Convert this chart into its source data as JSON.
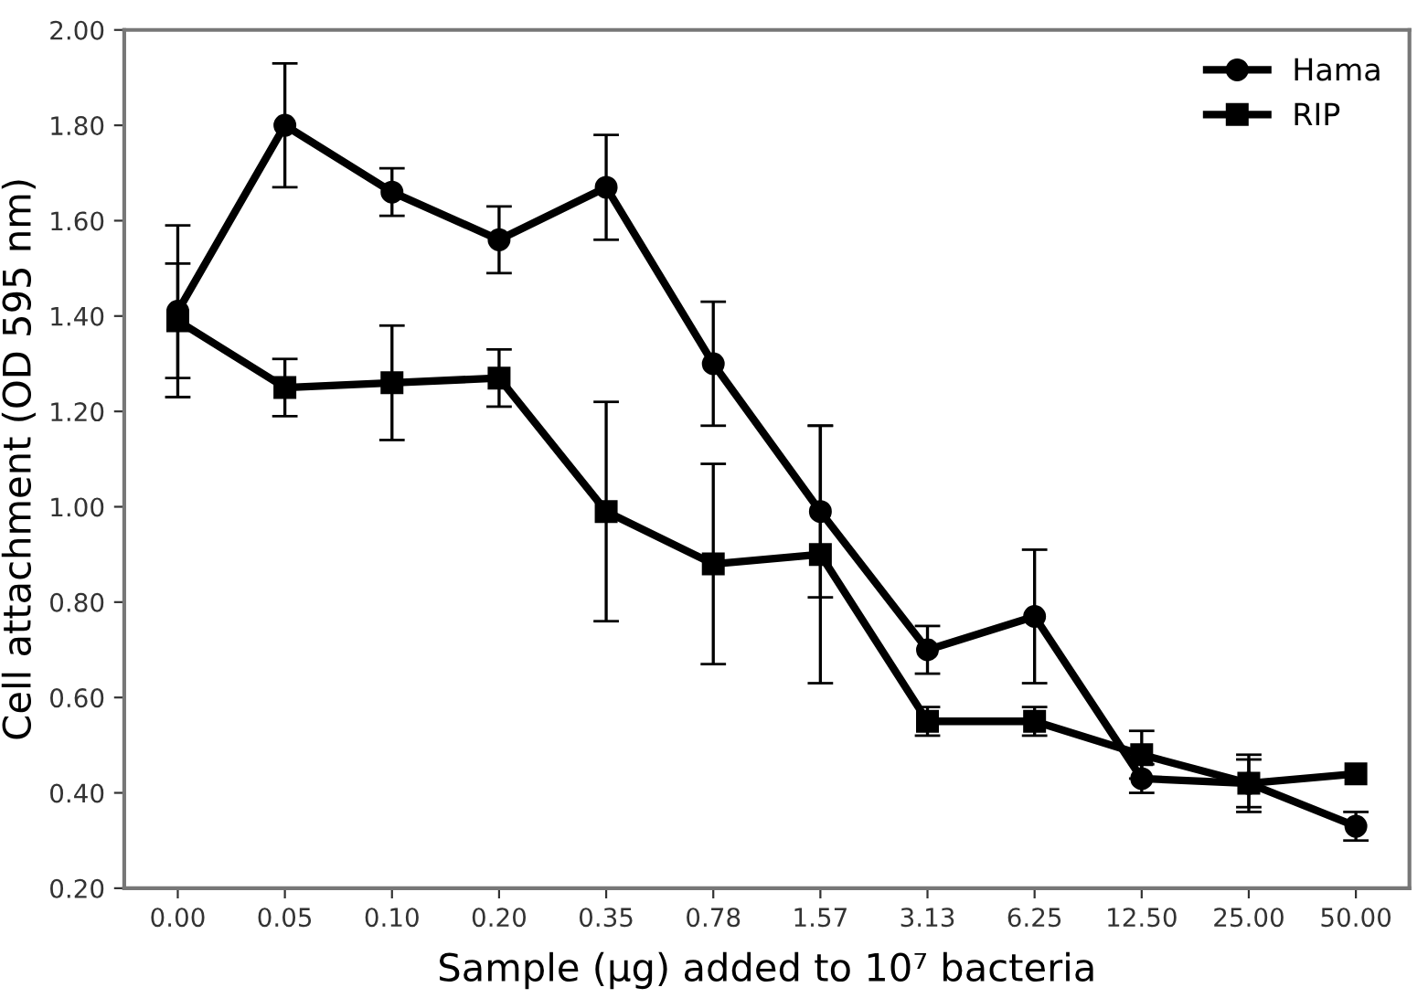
{
  "chart_data": {
    "type": "line",
    "xlabel": "Sample (µg) added to 10⁷ bacteria",
    "ylabel": "Cell attachment (OD 595 nm)",
    "categories": [
      "0.00",
      "0.05",
      "0.10",
      "0.20",
      "0.35",
      "0.78",
      "1.57",
      "3.13",
      "6.25",
      "12.50",
      "25.00",
      "50.00"
    ],
    "series": [
      {
        "name": "Hama",
        "color": "#000000",
        "marker": "circle",
        "values": [
          1.41,
          1.8,
          1.66,
          1.56,
          1.67,
          1.3,
          0.99,
          0.7,
          0.77,
          0.43,
          0.42,
          0.33
        ],
        "errors": [
          0.18,
          0.13,
          0.05,
          0.07,
          0.11,
          0.13,
          0.18,
          0.05,
          0.14,
          0.03,
          0.05,
          0.03
        ]
      },
      {
        "name": "RIP",
        "color": "#000000",
        "marker": "square",
        "values": [
          1.39,
          1.25,
          1.26,
          1.27,
          0.99,
          0.88,
          0.9,
          0.55,
          0.55,
          0.48,
          0.42,
          0.44
        ],
        "errors": [
          0.12,
          0.06,
          0.12,
          0.06,
          0.23,
          0.21,
          0.27,
          0.03,
          0.03,
          0.05,
          0.06,
          null
        ]
      }
    ],
    "ylim": [
      0.2,
      2.0
    ],
    "yticks": [
      {
        "value": 0.2,
        "label": "0.20"
      },
      {
        "value": 0.4,
        "label": "0.40"
      },
      {
        "value": 0.6,
        "label": "0.60"
      },
      {
        "value": 0.8,
        "label": "0.80"
      },
      {
        "value": 1.0,
        "label": "1.00"
      },
      {
        "value": 1.2,
        "label": "1.20"
      },
      {
        "value": 1.4,
        "label": "1.40"
      },
      {
        "value": 1.6,
        "label": "1.60"
      },
      {
        "value": 1.8,
        "label": "1.80"
      },
      {
        "value": 2.0,
        "label": "2.00"
      }
    ],
    "grid": false,
    "legend": "top right"
  }
}
